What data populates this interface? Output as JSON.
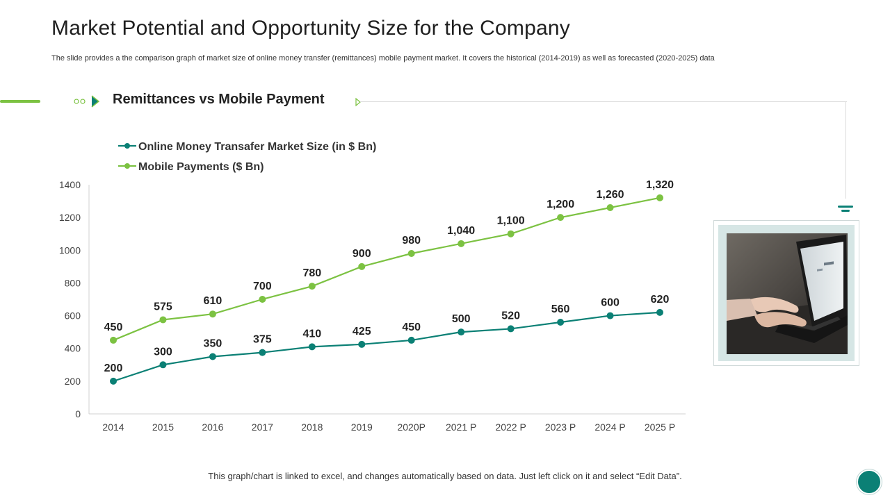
{
  "header": {
    "title": "Market Potential and Opportunity Size for the Company",
    "subtitle": "The slide provides a the comparison graph of market size of online money transfer (remittances) mobile payment market. It covers the historical (2014-2019) as well as forecasted (2020-2025) data"
  },
  "section": {
    "title": "Remittances vs Mobile Payment"
  },
  "footnote": "This graph/chart is linked to excel, and changes automatically based on data. Just left click on it and select “Edit Data”.",
  "colors": {
    "teal": "#0b8075",
    "green": "#7cc242",
    "axis": "#d0d0d0",
    "tick_text": "#444444"
  },
  "chart_data": {
    "type": "line",
    "categories": [
      "2014",
      "2015",
      "2016",
      "2017",
      "2018",
      "2019",
      "2020P",
      "2021 P",
      "2022 P",
      "2023 P",
      "2024 P",
      "2025 P"
    ],
    "series": [
      {
        "name": "Online Money Transafer Market Size (in $ Bn)",
        "color": "#0b8075",
        "values": [
          200,
          300,
          350,
          375,
          410,
          425,
          450,
          500,
          520,
          560,
          600,
          620
        ],
        "labels": [
          "200",
          "300",
          "350",
          "375",
          "410",
          "425",
          "450",
          "500",
          "520",
          "560",
          "600",
          "620"
        ]
      },
      {
        "name": "Mobile Payments ($ Bn)",
        "color": "#7cc242",
        "values": [
          450,
          575,
          610,
          700,
          780,
          900,
          980,
          1040,
          1100,
          1200,
          1260,
          1320
        ],
        "labels": [
          "450",
          "575",
          "610",
          "700",
          "780",
          "900",
          "980",
          "1,040",
          "1,100",
          "1,200",
          "1,260",
          "1,320"
        ]
      }
    ],
    "yticks": [
      "0",
      "200",
      "400",
      "600",
      "800",
      "1000",
      "1200",
      "1400"
    ],
    "ylim": [
      0,
      1400
    ],
    "title": "Remittances vs Mobile Payment",
    "xlabel": "",
    "ylabel": "",
    "grid": false,
    "legend_position": "top-left"
  }
}
